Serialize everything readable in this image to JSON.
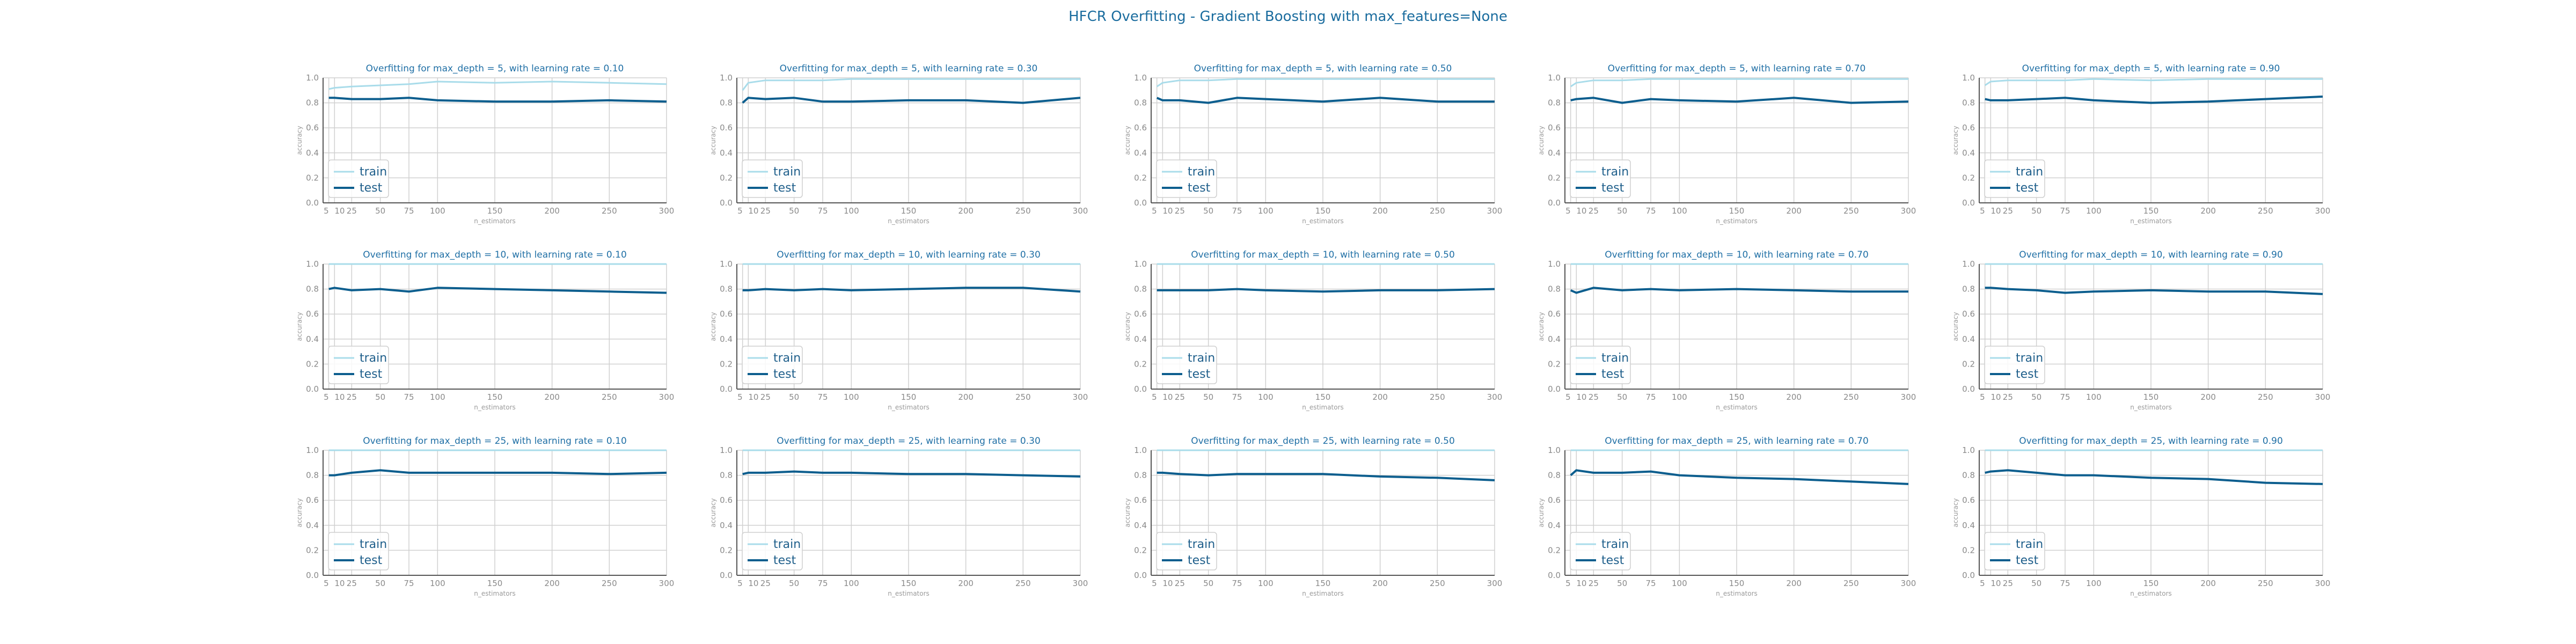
{
  "title": "HFCR Overfitting - Gradient Boosting with max_features=None",
  "colors": {
    "train": "#a9dcea",
    "test": "#0c5e8e",
    "title": "#1f6fa5",
    "grid": "#d0d0d0",
    "axis": "#555555"
  },
  "chart_data": [
    {
      "type": "line",
      "title": "Overfitting for max_depth = 5, with learning rate = 0.10",
      "xlabel": "n_estimators",
      "ylabel": "accuracy",
      "ylim": [
        0,
        1
      ],
      "xlim": [
        0,
        300
      ],
      "grid": true,
      "legend": "lower-left",
      "x": [
        5,
        10,
        25,
        50,
        75,
        100,
        150,
        200,
        250,
        300
      ],
      "xticks": [
        5,
        10,
        25,
        50,
        75,
        100,
        150,
        200,
        250,
        300
      ],
      "yticks": [
        0.0,
        0.2,
        0.4,
        0.6,
        0.8,
        1.0
      ],
      "series": [
        {
          "name": "train",
          "values": [
            0.91,
            0.92,
            0.93,
            0.94,
            0.95,
            0.97,
            0.96,
            0.97,
            0.96,
            0.95
          ]
        },
        {
          "name": "test",
          "values": [
            0.84,
            0.84,
            0.83,
            0.83,
            0.84,
            0.82,
            0.81,
            0.81,
            0.82,
            0.81
          ]
        }
      ]
    },
    {
      "type": "line",
      "title": "Overfitting for max_depth = 5, with learning rate = 0.30",
      "xlabel": "n_estimators",
      "ylabel": "accuracy",
      "ylim": [
        0,
        1
      ],
      "xlim": [
        0,
        300
      ],
      "grid": true,
      "legend": "lower-left",
      "x": [
        5,
        10,
        25,
        50,
        75,
        100,
        150,
        200,
        250,
        300
      ],
      "xticks": [
        5,
        10,
        25,
        50,
        75,
        100,
        150,
        200,
        250,
        300
      ],
      "yticks": [
        0.0,
        0.2,
        0.4,
        0.6,
        0.8,
        1.0
      ],
      "series": [
        {
          "name": "train",
          "values": [
            0.9,
            0.96,
            0.98,
            0.98,
            0.98,
            0.99,
            0.99,
            0.99,
            0.99,
            0.99
          ]
        },
        {
          "name": "test",
          "values": [
            0.8,
            0.84,
            0.83,
            0.84,
            0.81,
            0.81,
            0.82,
            0.82,
            0.8,
            0.84
          ]
        }
      ]
    },
    {
      "type": "line",
      "title": "Overfitting for max_depth = 5, with learning rate = 0.50",
      "xlabel": "n_estimators",
      "ylabel": "accuracy",
      "ylim": [
        0,
        1
      ],
      "xlim": [
        0,
        300
      ],
      "grid": true,
      "legend": "lower-left",
      "x": [
        5,
        10,
        25,
        50,
        75,
        100,
        150,
        200,
        250,
        300
      ],
      "xticks": [
        5,
        10,
        25,
        50,
        75,
        100,
        150,
        200,
        250,
        300
      ],
      "yticks": [
        0.0,
        0.2,
        0.4,
        0.6,
        0.8,
        1.0
      ],
      "series": [
        {
          "name": "train",
          "values": [
            0.93,
            0.96,
            0.98,
            0.98,
            0.99,
            0.99,
            0.99,
            0.99,
            0.99,
            0.99
          ]
        },
        {
          "name": "test",
          "values": [
            0.84,
            0.82,
            0.82,
            0.8,
            0.84,
            0.83,
            0.81,
            0.84,
            0.81,
            0.81
          ]
        }
      ]
    },
    {
      "type": "line",
      "title": "Overfitting for max_depth = 5, with learning rate = 0.70",
      "xlabel": "n_estimators",
      "ylabel": "accuracy",
      "ylim": [
        0,
        1
      ],
      "xlim": [
        0,
        300
      ],
      "grid": true,
      "legend": "lower-left",
      "x": [
        5,
        10,
        25,
        50,
        75,
        100,
        150,
        200,
        250,
        300
      ],
      "xticks": [
        5,
        10,
        25,
        50,
        75,
        100,
        150,
        200,
        250,
        300
      ],
      "yticks": [
        0.0,
        0.2,
        0.4,
        0.6,
        0.8,
        1.0
      ],
      "series": [
        {
          "name": "train",
          "values": [
            0.93,
            0.96,
            0.98,
            0.98,
            0.99,
            0.99,
            0.99,
            0.99,
            0.99,
            0.99
          ]
        },
        {
          "name": "test",
          "values": [
            0.82,
            0.83,
            0.84,
            0.8,
            0.83,
            0.82,
            0.81,
            0.84,
            0.8,
            0.81
          ]
        }
      ]
    },
    {
      "type": "line",
      "title": "Overfitting for max_depth = 5, with learning rate = 0.90",
      "xlabel": "n_estimators",
      "ylabel": "accuracy",
      "ylim": [
        0,
        1
      ],
      "xlim": [
        0,
        300
      ],
      "grid": true,
      "legend": "lower-left",
      "x": [
        5,
        10,
        25,
        50,
        75,
        100,
        150,
        200,
        250,
        300
      ],
      "xticks": [
        5,
        10,
        25,
        50,
        75,
        100,
        150,
        200,
        250,
        300
      ],
      "yticks": [
        0.0,
        0.2,
        0.4,
        0.6,
        0.8,
        1.0
      ],
      "series": [
        {
          "name": "train",
          "values": [
            0.94,
            0.97,
            0.98,
            0.98,
            0.98,
            0.99,
            0.98,
            0.99,
            0.99,
            0.99
          ]
        },
        {
          "name": "test",
          "values": [
            0.83,
            0.82,
            0.82,
            0.83,
            0.84,
            0.82,
            0.8,
            0.81,
            0.83,
            0.85
          ]
        }
      ]
    },
    {
      "type": "line",
      "title": "Overfitting for max_depth = 10, with learning rate = 0.10",
      "xlabel": "n_estimators",
      "ylabel": "accuracy",
      "ylim": [
        0,
        1
      ],
      "xlim": [
        0,
        300
      ],
      "grid": true,
      "legend": "lower-left",
      "x": [
        5,
        10,
        25,
        50,
        75,
        100,
        150,
        200,
        250,
        300
      ],
      "xticks": [
        5,
        10,
        25,
        50,
        75,
        100,
        150,
        200,
        250,
        300
      ],
      "yticks": [
        0.0,
        0.2,
        0.4,
        0.6,
        0.8,
        1.0
      ],
      "series": [
        {
          "name": "train",
          "values": [
            1.0,
            1.0,
            1.0,
            1.0,
            1.0,
            1.0,
            1.0,
            1.0,
            1.0,
            1.0
          ]
        },
        {
          "name": "test",
          "values": [
            0.8,
            0.81,
            0.79,
            0.8,
            0.78,
            0.81,
            0.8,
            0.79,
            0.78,
            0.77
          ]
        }
      ]
    },
    {
      "type": "line",
      "title": "Overfitting for max_depth = 10, with learning rate = 0.30",
      "xlabel": "n_estimators",
      "ylabel": "accuracy",
      "ylim": [
        0,
        1
      ],
      "xlim": [
        0,
        300
      ],
      "grid": true,
      "legend": "lower-left",
      "x": [
        5,
        10,
        25,
        50,
        75,
        100,
        150,
        200,
        250,
        300
      ],
      "xticks": [
        5,
        10,
        25,
        50,
        75,
        100,
        150,
        200,
        250,
        300
      ],
      "yticks": [
        0.0,
        0.2,
        0.4,
        0.6,
        0.8,
        1.0
      ],
      "series": [
        {
          "name": "train",
          "values": [
            1.0,
            1.0,
            1.0,
            1.0,
            1.0,
            1.0,
            1.0,
            1.0,
            1.0,
            1.0
          ]
        },
        {
          "name": "test",
          "values": [
            0.79,
            0.79,
            0.8,
            0.79,
            0.8,
            0.79,
            0.8,
            0.81,
            0.81,
            0.78
          ]
        }
      ]
    },
    {
      "type": "line",
      "title": "Overfitting for max_depth = 10, with learning rate = 0.50",
      "xlabel": "n_estimators",
      "ylabel": "accuracy",
      "ylim": [
        0,
        1
      ],
      "xlim": [
        0,
        300
      ],
      "grid": true,
      "legend": "lower-left",
      "x": [
        5,
        10,
        25,
        50,
        75,
        100,
        150,
        200,
        250,
        300
      ],
      "xticks": [
        5,
        10,
        25,
        50,
        75,
        100,
        150,
        200,
        250,
        300
      ],
      "yticks": [
        0.0,
        0.2,
        0.4,
        0.6,
        0.8,
        1.0
      ],
      "series": [
        {
          "name": "train",
          "values": [
            1.0,
            1.0,
            1.0,
            1.0,
            1.0,
            1.0,
            1.0,
            1.0,
            1.0,
            1.0
          ]
        },
        {
          "name": "test",
          "values": [
            0.79,
            0.79,
            0.79,
            0.79,
            0.8,
            0.79,
            0.78,
            0.79,
            0.79,
            0.8
          ]
        }
      ]
    },
    {
      "type": "line",
      "title": "Overfitting for max_depth = 10, with learning rate = 0.70",
      "xlabel": "n_estimators",
      "ylabel": "accuracy",
      "ylim": [
        0,
        1
      ],
      "xlim": [
        0,
        300
      ],
      "grid": true,
      "legend": "lower-left",
      "x": [
        5,
        10,
        25,
        50,
        75,
        100,
        150,
        200,
        250,
        300
      ],
      "xticks": [
        5,
        10,
        25,
        50,
        75,
        100,
        150,
        200,
        250,
        300
      ],
      "yticks": [
        0.0,
        0.2,
        0.4,
        0.6,
        0.8,
        1.0
      ],
      "series": [
        {
          "name": "train",
          "values": [
            1.0,
            1.0,
            1.0,
            1.0,
            1.0,
            1.0,
            1.0,
            1.0,
            1.0,
            1.0
          ]
        },
        {
          "name": "test",
          "values": [
            0.79,
            0.77,
            0.81,
            0.79,
            0.8,
            0.79,
            0.8,
            0.79,
            0.78,
            0.78
          ]
        }
      ]
    },
    {
      "type": "line",
      "title": "Overfitting for max_depth = 10, with learning rate = 0.90",
      "xlabel": "n_estimators",
      "ylabel": "accuracy",
      "ylim": [
        0,
        1
      ],
      "xlim": [
        0,
        300
      ],
      "grid": true,
      "legend": "lower-left",
      "x": [
        5,
        10,
        25,
        50,
        75,
        100,
        150,
        200,
        250,
        300
      ],
      "xticks": [
        5,
        10,
        25,
        50,
        75,
        100,
        150,
        200,
        250,
        300
      ],
      "yticks": [
        0.0,
        0.2,
        0.4,
        0.6,
        0.8,
        1.0
      ],
      "series": [
        {
          "name": "train",
          "values": [
            1.0,
            1.0,
            1.0,
            1.0,
            1.0,
            1.0,
            1.0,
            1.0,
            1.0,
            1.0
          ]
        },
        {
          "name": "test",
          "values": [
            0.81,
            0.81,
            0.8,
            0.79,
            0.77,
            0.78,
            0.79,
            0.78,
            0.78,
            0.76
          ]
        }
      ]
    },
    {
      "type": "line",
      "title": "Overfitting for max_depth = 25, with learning rate = 0.10",
      "xlabel": "n_estimators",
      "ylabel": "accuracy",
      "ylim": [
        0,
        1
      ],
      "xlim": [
        0,
        300
      ],
      "grid": true,
      "legend": "lower-left",
      "x": [
        5,
        10,
        25,
        50,
        75,
        100,
        150,
        200,
        250,
        300
      ],
      "xticks": [
        5,
        10,
        25,
        50,
        75,
        100,
        150,
        200,
        250,
        300
      ],
      "yticks": [
        0.0,
        0.2,
        0.4,
        0.6,
        0.8,
        1.0
      ],
      "series": [
        {
          "name": "train",
          "values": [
            1.0,
            1.0,
            1.0,
            1.0,
            1.0,
            1.0,
            1.0,
            1.0,
            1.0,
            1.0
          ]
        },
        {
          "name": "test",
          "values": [
            0.8,
            0.8,
            0.82,
            0.84,
            0.82,
            0.82,
            0.82,
            0.82,
            0.81,
            0.82
          ]
        }
      ]
    },
    {
      "type": "line",
      "title": "Overfitting for max_depth = 25, with learning rate = 0.30",
      "xlabel": "n_estimators",
      "ylabel": "accuracy",
      "ylim": [
        0,
        1
      ],
      "xlim": [
        0,
        300
      ],
      "grid": true,
      "legend": "lower-left",
      "x": [
        5,
        10,
        25,
        50,
        75,
        100,
        150,
        200,
        250,
        300
      ],
      "xticks": [
        5,
        10,
        25,
        50,
        75,
        100,
        150,
        200,
        250,
        300
      ],
      "yticks": [
        0.0,
        0.2,
        0.4,
        0.6,
        0.8,
        1.0
      ],
      "series": [
        {
          "name": "train",
          "values": [
            1.0,
            1.0,
            1.0,
            1.0,
            1.0,
            1.0,
            1.0,
            1.0,
            1.0,
            1.0
          ]
        },
        {
          "name": "test",
          "values": [
            0.81,
            0.82,
            0.82,
            0.83,
            0.82,
            0.82,
            0.81,
            0.81,
            0.8,
            0.79
          ]
        }
      ]
    },
    {
      "type": "line",
      "title": "Overfitting for max_depth = 25, with learning rate = 0.50",
      "xlabel": "n_estimators",
      "ylabel": "accuracy",
      "ylim": [
        0,
        1
      ],
      "xlim": [
        0,
        300
      ],
      "grid": true,
      "legend": "lower-left",
      "x": [
        5,
        10,
        25,
        50,
        75,
        100,
        150,
        200,
        250,
        300
      ],
      "xticks": [
        5,
        10,
        25,
        50,
        75,
        100,
        150,
        200,
        250,
        300
      ],
      "yticks": [
        0.0,
        0.2,
        0.4,
        0.6,
        0.8,
        1.0
      ],
      "series": [
        {
          "name": "train",
          "values": [
            1.0,
            1.0,
            1.0,
            1.0,
            1.0,
            1.0,
            1.0,
            1.0,
            1.0,
            1.0
          ]
        },
        {
          "name": "test",
          "values": [
            0.82,
            0.82,
            0.81,
            0.8,
            0.81,
            0.81,
            0.81,
            0.79,
            0.78,
            0.76
          ]
        }
      ]
    },
    {
      "type": "line",
      "title": "Overfitting for max_depth = 25, with learning rate = 0.70",
      "xlabel": "n_estimators",
      "ylabel": "accuracy",
      "ylim": [
        0,
        1
      ],
      "xlim": [
        0,
        300
      ],
      "grid": true,
      "legend": "lower-left",
      "x": [
        5,
        10,
        25,
        50,
        75,
        100,
        150,
        200,
        250,
        300
      ],
      "xticks": [
        5,
        10,
        25,
        50,
        75,
        100,
        150,
        200,
        250,
        300
      ],
      "yticks": [
        0.0,
        0.2,
        0.4,
        0.6,
        0.8,
        1.0
      ],
      "series": [
        {
          "name": "train",
          "values": [
            1.0,
            1.0,
            1.0,
            1.0,
            1.0,
            1.0,
            1.0,
            1.0,
            1.0,
            1.0
          ]
        },
        {
          "name": "test",
          "values": [
            0.8,
            0.84,
            0.82,
            0.82,
            0.83,
            0.8,
            0.78,
            0.77,
            0.75,
            0.73
          ]
        }
      ]
    },
    {
      "type": "line",
      "title": "Overfitting for max_depth = 25, with learning rate = 0.90",
      "xlabel": "n_estimators",
      "ylabel": "accuracy",
      "ylim": [
        0,
        1
      ],
      "xlim": [
        0,
        300
      ],
      "grid": true,
      "legend": "lower-left",
      "x": [
        5,
        10,
        25,
        50,
        75,
        100,
        150,
        200,
        250,
        300
      ],
      "xticks": [
        5,
        10,
        25,
        50,
        75,
        100,
        150,
        200,
        250,
        300
      ],
      "yticks": [
        0.0,
        0.2,
        0.4,
        0.6,
        0.8,
        1.0
      ],
      "series": [
        {
          "name": "train",
          "values": [
            1.0,
            1.0,
            1.0,
            1.0,
            1.0,
            1.0,
            1.0,
            1.0,
            1.0,
            1.0
          ]
        },
        {
          "name": "test",
          "values": [
            0.82,
            0.83,
            0.84,
            0.82,
            0.8,
            0.8,
            0.78,
            0.77,
            0.74,
            0.73
          ]
        }
      ]
    }
  ]
}
